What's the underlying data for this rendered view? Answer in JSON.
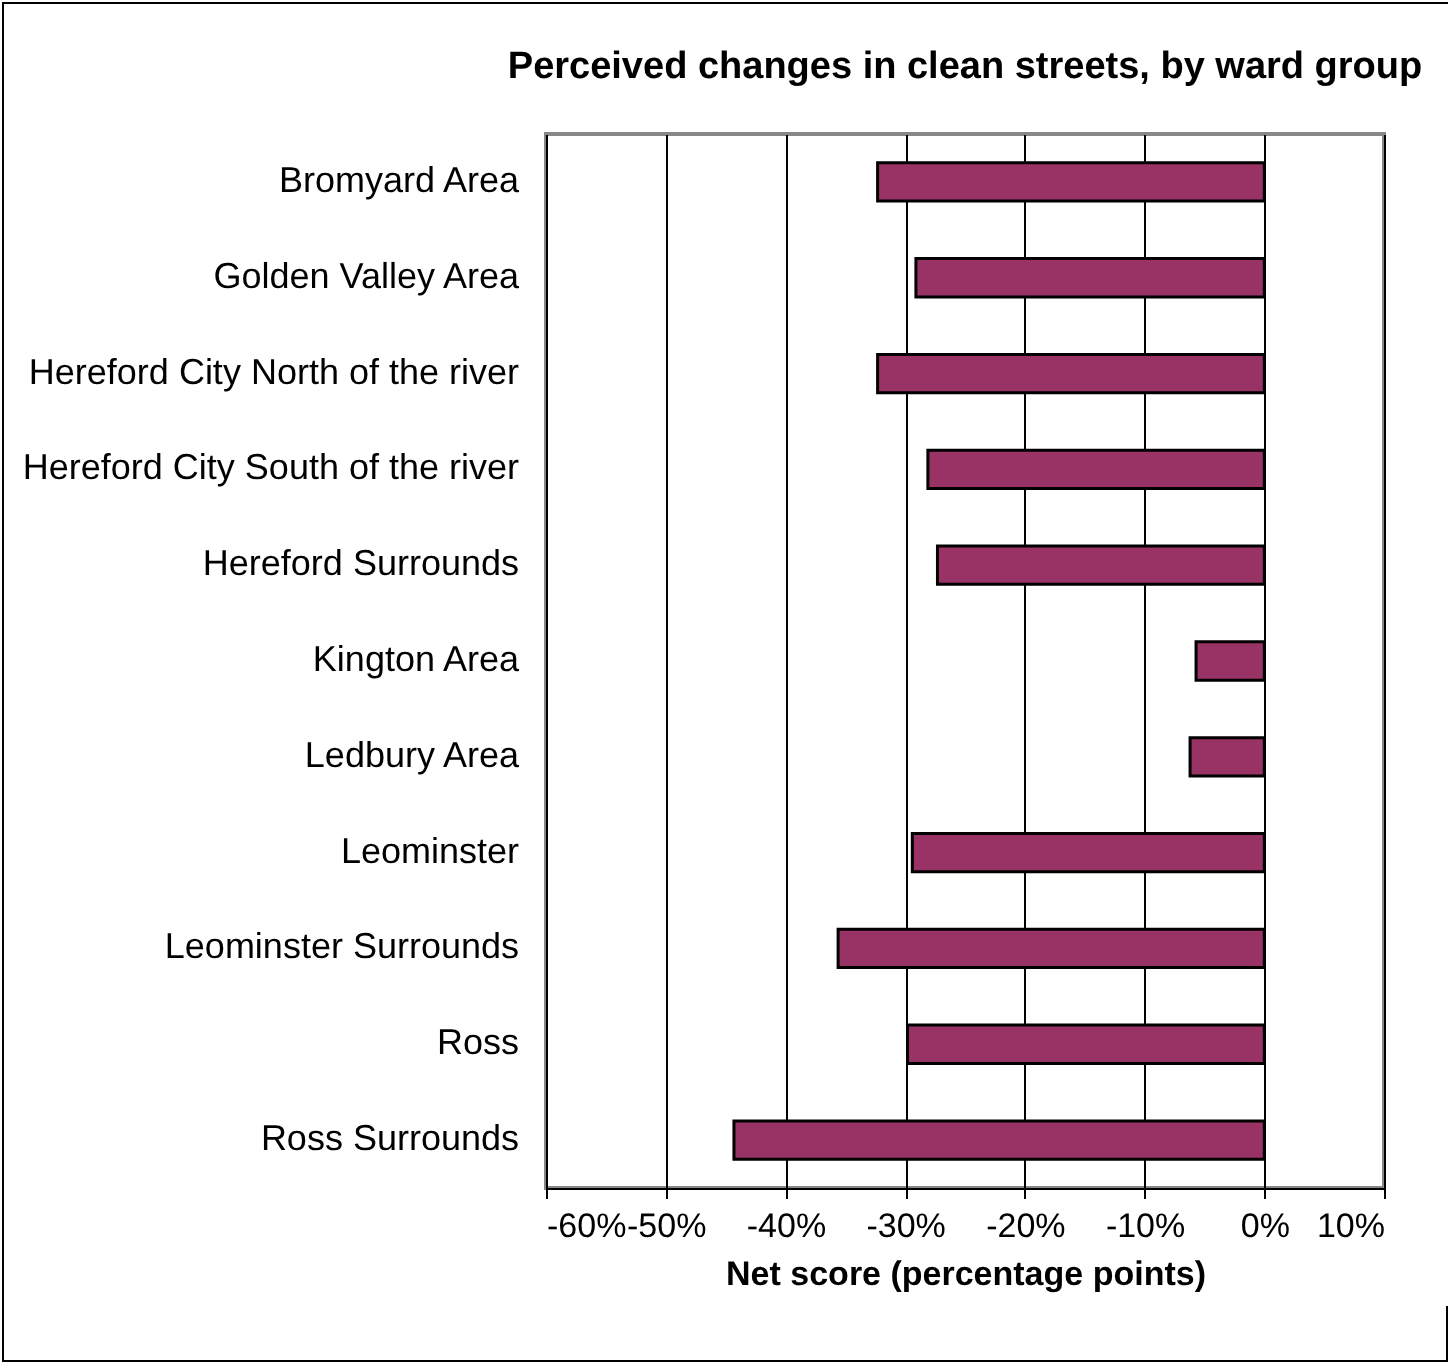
{
  "chart_data": {
    "type": "bar",
    "orientation": "horizontal",
    "title": "Perceived changes in clean streets, by ward group",
    "xlabel": "Net score (percentage points)",
    "categories": [
      "Bromyard Area",
      "Golden Valley Area",
      "Hereford City North of the river",
      "Hereford City South of the river",
      "Hereford Surrounds",
      "Kington Area",
      "Ledbury Area",
      "Leominster",
      "Leominster Surrounds",
      "Ross",
      "Ross Surrounds"
    ],
    "values": [
      -32.3,
      -29.1,
      -32.3,
      -28.1,
      -27.3,
      -5.7,
      -6.2,
      -29.4,
      -35.6,
      -29.8,
      -44.3
    ],
    "color": "#993366",
    "xlim": [
      -60,
      10
    ],
    "xticks": [
      {
        "value": -60,
        "label": "-60%"
      },
      {
        "value": -50,
        "label": "-50%"
      },
      {
        "value": -40,
        "label": "-40%"
      },
      {
        "value": -30,
        "label": "-30%"
      },
      {
        "value": -20,
        "label": "-20%"
      },
      {
        "value": -10,
        "label": "-10%"
      },
      {
        "value": 0,
        "label": "0%"
      },
      {
        "value": 10,
        "label": "10%"
      }
    ],
    "grid": "x"
  }
}
